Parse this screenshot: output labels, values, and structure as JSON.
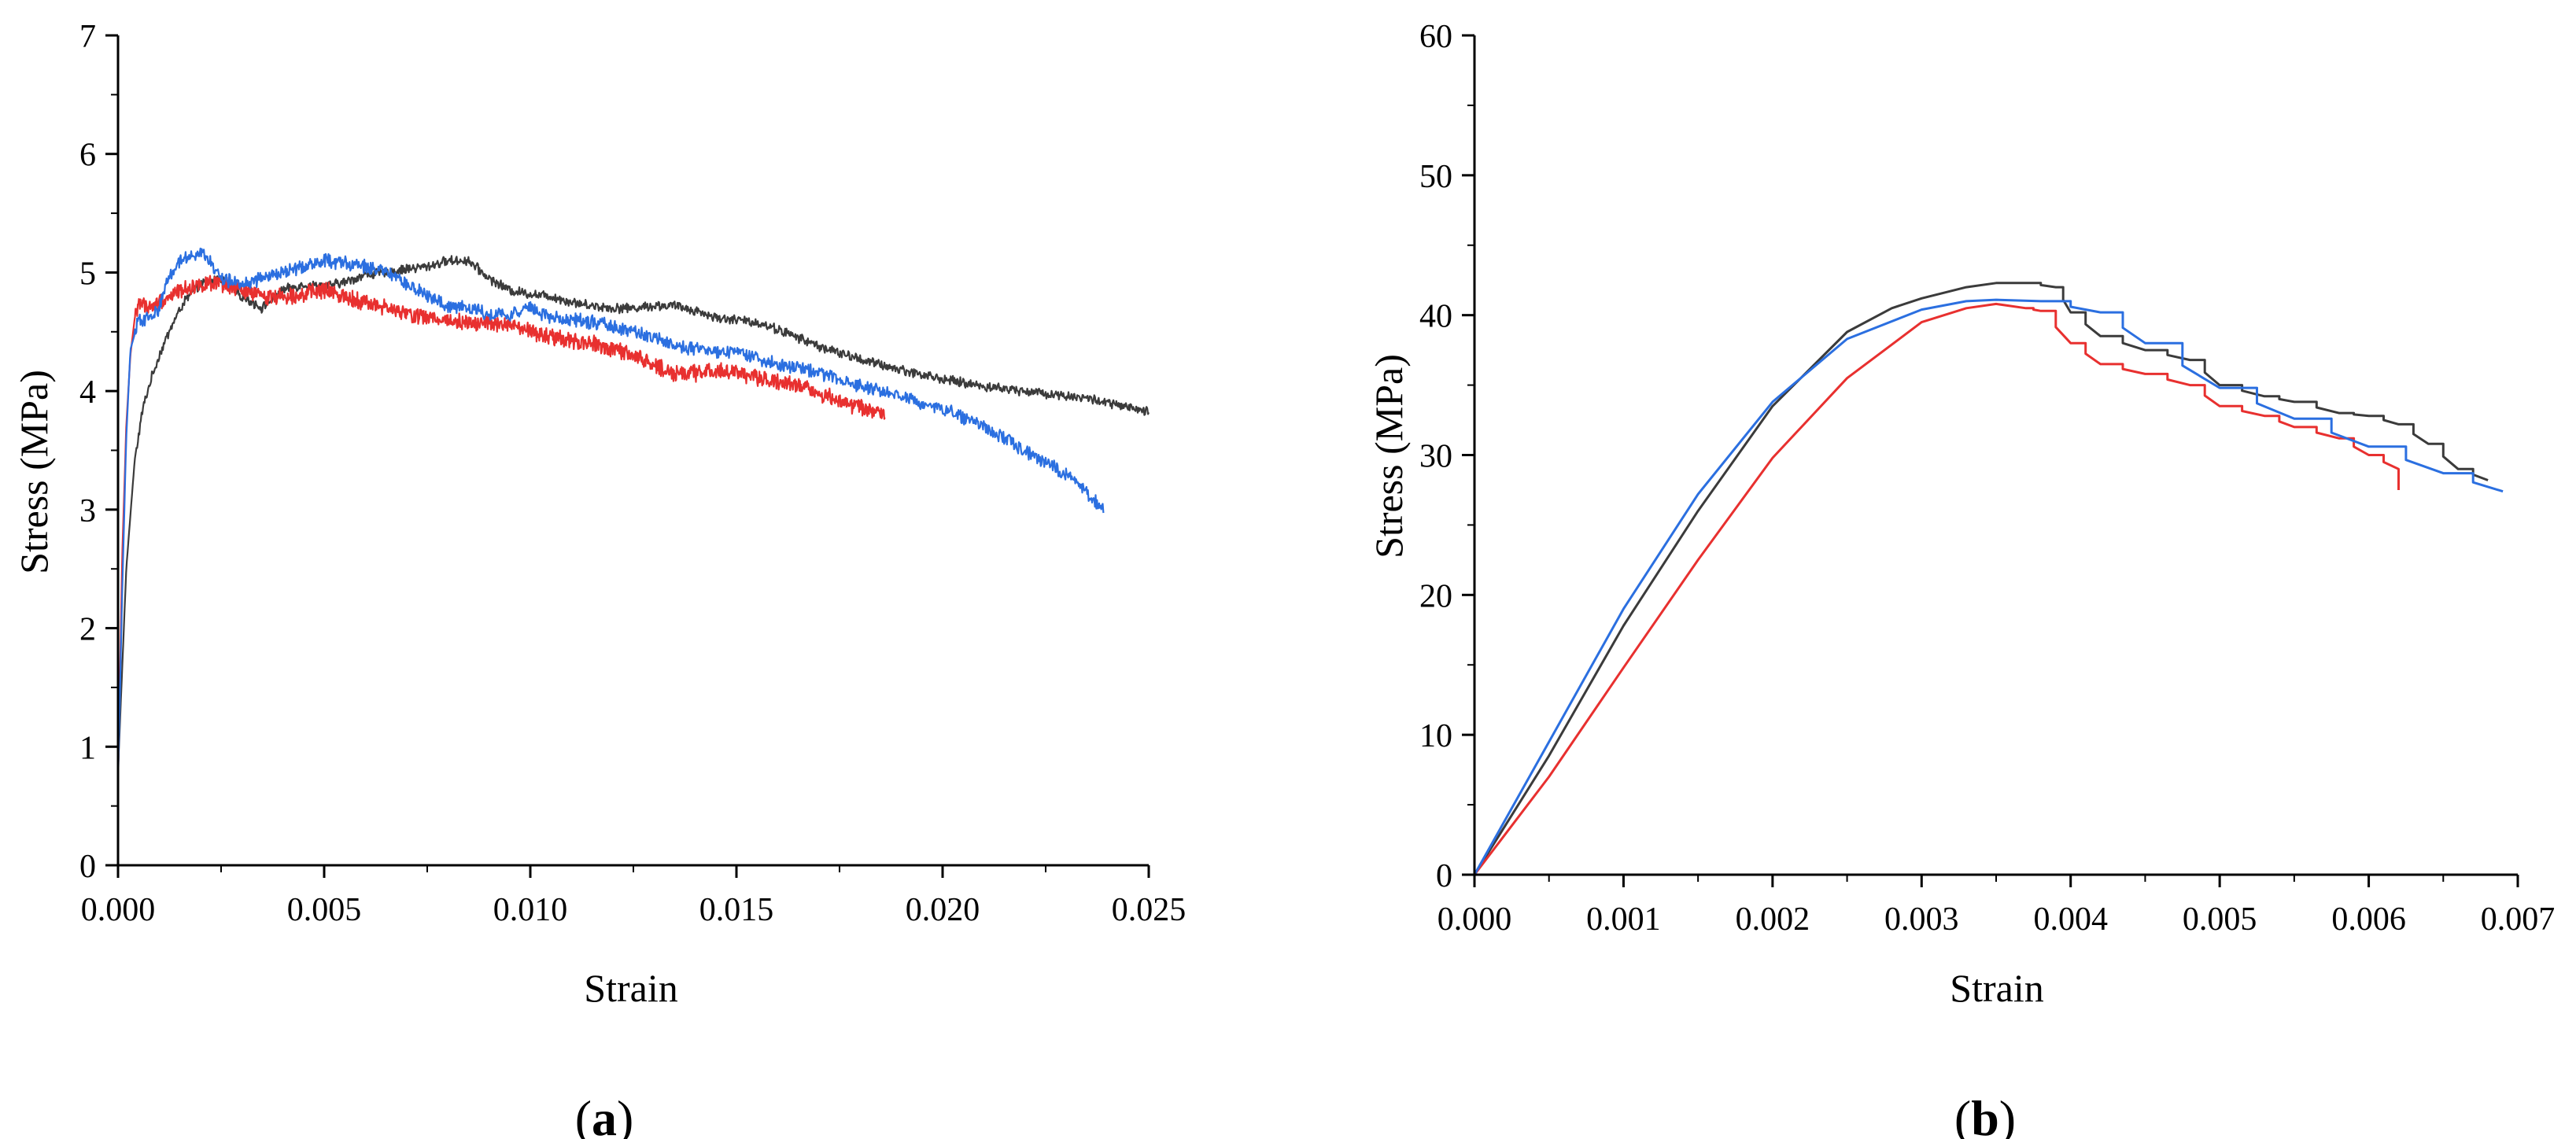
{
  "colors": {
    "black": "#3b3b3b",
    "red": "#e8302f",
    "blue": "#2b6fe0",
    "axis": "#000000"
  },
  "chart_data": [
    {
      "id": "a",
      "type": "line",
      "panel_label_open": "(",
      "panel_label_letter": "a",
      "panel_label_close": ")",
      "title": "",
      "xlabel": "Strain",
      "ylabel": "Stress (MPa)",
      "xlim": [
        0,
        0.025
      ],
      "ylim": [
        0,
        7
      ],
      "xticks": [
        0.0,
        0.005,
        0.01,
        0.015,
        0.02,
        0.025
      ],
      "xtick_labels": [
        "0.000",
        "0.005",
        "0.010",
        "0.015",
        "0.020",
        "0.025"
      ],
      "yticks": [
        0,
        1,
        2,
        3,
        4,
        5,
        6,
        7
      ],
      "ytick_labels": [
        "0",
        "1",
        "2",
        "3",
        "4",
        "5",
        "6",
        "7"
      ],
      "legend": "none",
      "series": [
        {
          "name": "black",
          "color": "#3b3b3b",
          "noise": 0.035,
          "x": [
            0.0,
            0.0002,
            0.0004,
            0.0006,
            0.0008,
            0.001,
            0.0013,
            0.0016,
            0.002,
            0.0025,
            0.003,
            0.0035,
            0.004,
            0.0045,
            0.005,
            0.0055,
            0.006,
            0.0065,
            0.007,
            0.0075,
            0.008,
            0.0085,
            0.009,
            0.0095,
            0.01,
            0.0105,
            0.011,
            0.0115,
            0.012,
            0.0125,
            0.013,
            0.0135,
            0.014,
            0.0145,
            0.015,
            0.0155,
            0.016,
            0.0165,
            0.017,
            0.0175,
            0.018,
            0.0185,
            0.019,
            0.0195,
            0.02,
            0.0205,
            0.021,
            0.0215,
            0.022,
            0.0225,
            0.023,
            0.0235,
            0.024,
            0.0245,
            0.025
          ],
          "y": [
            0.8,
            2.5,
            3.4,
            3.85,
            4.1,
            4.3,
            4.55,
            4.75,
            4.9,
            4.95,
            4.8,
            4.7,
            4.85,
            4.9,
            4.88,
            4.92,
            4.98,
            5.0,
            5.03,
            5.05,
            5.1,
            5.1,
            4.95,
            4.85,
            4.82,
            4.8,
            4.75,
            4.72,
            4.7,
            4.7,
            4.72,
            4.72,
            4.68,
            4.62,
            4.6,
            4.58,
            4.52,
            4.45,
            4.38,
            4.32,
            4.27,
            4.22,
            4.18,
            4.14,
            4.1,
            4.07,
            4.04,
            4.02,
            4.0,
            3.98,
            3.96,
            3.94,
            3.9,
            3.86,
            3.82
          ]
        },
        {
          "name": "red",
          "color": "#e8302f",
          "noise": 0.06,
          "x": [
            0.0,
            0.0001,
            0.0002,
            0.0003,
            0.0004,
            0.0005,
            0.0008,
            0.001,
            0.0015,
            0.002,
            0.0025,
            0.003,
            0.0035,
            0.004,
            0.0045,
            0.005,
            0.0055,
            0.006,
            0.0065,
            0.007,
            0.0075,
            0.008,
            0.0085,
            0.009,
            0.0095,
            0.01,
            0.0105,
            0.011,
            0.0115,
            0.012,
            0.0125,
            0.013,
            0.0135,
            0.014,
            0.0145,
            0.015,
            0.0155,
            0.016,
            0.0165,
            0.017,
            0.0175,
            0.018,
            0.0186
          ],
          "y": [
            0.7,
            2.6,
            3.7,
            4.3,
            4.6,
            4.75,
            4.7,
            4.75,
            4.85,
            4.9,
            4.9,
            4.85,
            4.8,
            4.8,
            4.82,
            4.85,
            4.8,
            4.75,
            4.7,
            4.65,
            4.62,
            4.6,
            4.58,
            4.57,
            4.55,
            4.5,
            4.45,
            4.42,
            4.4,
            4.35,
            4.3,
            4.22,
            4.15,
            4.15,
            4.18,
            4.15,
            4.12,
            4.08,
            4.05,
            3.98,
            3.92,
            3.86,
            3.8
          ]
        },
        {
          "name": "blue",
          "color": "#2b6fe0",
          "noise": 0.05,
          "x": [
            0.0,
            0.0001,
            0.0002,
            0.0003,
            0.0005,
            0.0008,
            0.001,
            0.0012,
            0.0015,
            0.0018,
            0.002,
            0.0022,
            0.0025,
            0.003,
            0.0035,
            0.004,
            0.0045,
            0.005,
            0.0055,
            0.006,
            0.0065,
            0.007,
            0.0075,
            0.008,
            0.0085,
            0.009,
            0.0095,
            0.01,
            0.0105,
            0.011,
            0.0115,
            0.012,
            0.0125,
            0.013,
            0.0135,
            0.014,
            0.0145,
            0.015,
            0.0155,
            0.016,
            0.0165,
            0.017,
            0.0175,
            0.018,
            0.0185,
            0.019,
            0.0195,
            0.02,
            0.0205,
            0.021,
            0.0215,
            0.022,
            0.0225,
            0.023,
            0.0235,
            0.0239
          ],
          "y": [
            0.7,
            2.3,
            3.6,
            4.35,
            4.6,
            4.62,
            4.7,
            4.95,
            5.1,
            5.15,
            5.18,
            5.1,
            4.95,
            4.9,
            4.95,
            5.0,
            5.05,
            5.1,
            5.08,
            5.05,
            5.0,
            4.9,
            4.8,
            4.72,
            4.7,
            4.65,
            4.65,
            4.7,
            4.62,
            4.6,
            4.58,
            4.55,
            4.5,
            4.45,
            4.38,
            4.35,
            4.33,
            4.32,
            4.28,
            4.22,
            4.2,
            4.15,
            4.1,
            4.05,
            4.0,
            3.95,
            3.9,
            3.85,
            3.78,
            3.7,
            3.6,
            3.5,
            3.4,
            3.3,
            3.15,
            3.0
          ]
        }
      ]
    },
    {
      "id": "b",
      "type": "line",
      "panel_label_open": "(",
      "panel_label_letter": "b",
      "panel_label_close": ")",
      "title": "",
      "xlabel": "Strain",
      "ylabel": "Stress (MPa)",
      "xlim": [
        0,
        0.007
      ],
      "ylim": [
        0,
        60
      ],
      "xticks": [
        0.0,
        0.001,
        0.002,
        0.003,
        0.004,
        0.005,
        0.006,
        0.007
      ],
      "xtick_labels": [
        "0.000",
        "0.001",
        "0.002",
        "0.003",
        "0.004",
        "0.005",
        "0.006",
        "0.007"
      ],
      "yticks": [
        0,
        10,
        20,
        30,
        40,
        50,
        60
      ],
      "ytick_labels": [
        "0",
        "10",
        "20",
        "30",
        "40",
        "50",
        "60"
      ],
      "legend": "none",
      "series": [
        {
          "name": "black",
          "color": "#3b3b3b",
          "noise": 0,
          "x": [
            0.0,
            0.0005,
            0.001,
            0.0015,
            0.002,
            0.0025,
            0.0028,
            0.003,
            0.0033,
            0.0035,
            0.0037,
            0.0039,
            0.004,
            0.0042,
            0.0045,
            0.0048,
            0.005,
            0.0053,
            0.0055,
            0.0058,
            0.006,
            0.0062,
            0.0064,
            0.0066,
            0.0068
          ],
          "y": [
            0.0,
            8.5,
            17.8,
            26.0,
            33.5,
            38.8,
            40.5,
            41.2,
            42.0,
            42.3,
            42.3,
            42.0,
            40.2,
            38.5,
            37.5,
            36.8,
            35.0,
            34.2,
            33.8,
            33.0,
            32.8,
            32.2,
            30.8,
            29.0,
            28.2
          ]
        },
        {
          "name": "red",
          "color": "#e8302f",
          "noise": 0,
          "x": [
            0.0,
            0.0005,
            0.001,
            0.0015,
            0.002,
            0.0025,
            0.003,
            0.0033,
            0.0035,
            0.0037,
            0.0038,
            0.004,
            0.0042,
            0.0045,
            0.0048,
            0.005,
            0.0053,
            0.0055,
            0.0058,
            0.006,
            0.0062,
            0.0062
          ],
          "y": [
            0.0,
            7.0,
            14.8,
            22.5,
            29.8,
            35.5,
            39.5,
            40.5,
            40.8,
            40.5,
            40.3,
            38.0,
            36.5,
            35.8,
            35.0,
            33.5,
            32.8,
            32.0,
            31.2,
            30.0,
            29.0,
            27.5
          ]
        },
        {
          "name": "blue",
          "color": "#2b6fe0",
          "noise": 0,
          "x": [
            0.0,
            0.0005,
            0.001,
            0.0015,
            0.002,
            0.0025,
            0.003,
            0.0033,
            0.0035,
            0.0038,
            0.0042,
            0.0045,
            0.005,
            0.0055,
            0.006,
            0.0065,
            0.0069
          ],
          "y": [
            0.0,
            9.5,
            19.0,
            27.2,
            33.8,
            38.3,
            40.4,
            41.0,
            41.1,
            41.0,
            40.2,
            38.0,
            34.8,
            32.6,
            30.6,
            28.7,
            27.4
          ]
        }
      ]
    }
  ]
}
